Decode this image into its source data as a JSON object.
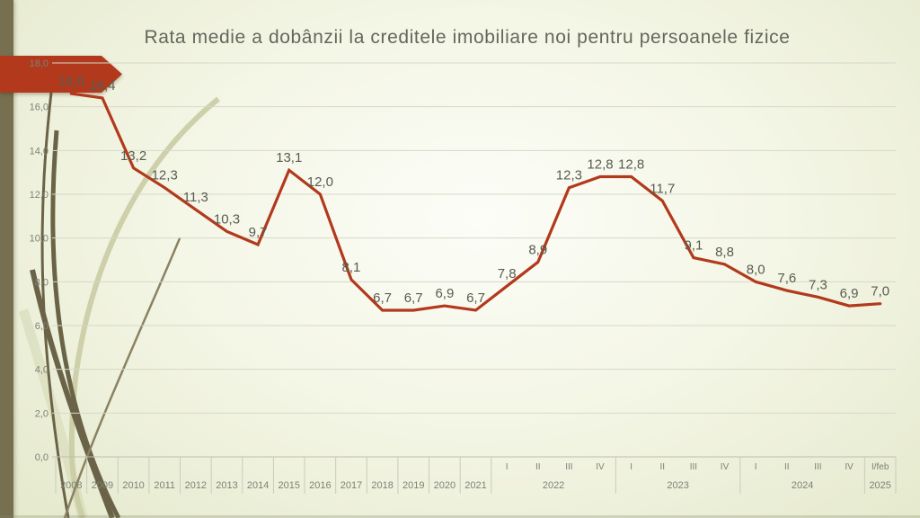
{
  "slide": {
    "title": "Rata medie a dobânzii la creditele imobiliare noi pentru persoanele fizice",
    "decorations": {
      "left_bar_color": "#767050",
      "arrow_color": "#b2391c",
      "swoosh_dark_color": "#6a6347",
      "swoosh_medium_color": "#8a8262",
      "swoosh_pale_color": "#c9cca3",
      "swoosh_palest_color": "#d4d7b2"
    }
  },
  "chart_data": {
    "type": "line",
    "title": "Rata medie a dobânzii la creditele imobiliare noi pentru persoanele fizice",
    "legend_position": "none",
    "grid": true,
    "series": [
      {
        "name": "Rata medie a dobânzii",
        "color": "#b2391c",
        "values": [
          16.6,
          16.4,
          13.2,
          12.3,
          11.3,
          10.3,
          9.7,
          13.1,
          12.0,
          8.1,
          6.7,
          6.7,
          6.9,
          6.7,
          7.8,
          8.9,
          12.3,
          12.8,
          12.8,
          11.7,
          9.1,
          8.8,
          8.0,
          7.6,
          7.3,
          6.9,
          7.0
        ],
        "value_labels": [
          "16,6",
          "16,4",
          "13,2",
          "12,3",
          "11,3",
          "10,3",
          "9,7",
          "13,1",
          "12,0",
          "8,1",
          "6,7",
          "6,7",
          "6,9",
          "6,7",
          "7,8",
          "8,9",
          "12,3",
          "12,8",
          "12,8",
          "11,7",
          "9,1",
          "8,8",
          "8,0",
          "7,6",
          "7,3",
          "6,9",
          "7,0"
        ]
      }
    ],
    "x_axis": {
      "year_categories": [
        "2008",
        "2009",
        "2010",
        "2011",
        "2012",
        "2013",
        "2014",
        "2015",
        "2016",
        "2017",
        "2018",
        "2019",
        "2020",
        "2021"
      ],
      "quarter_groups": [
        {
          "year": "2022",
          "quarters": [
            "I",
            "II",
            "III",
            "IV"
          ]
        },
        {
          "year": "2023",
          "quarters": [
            "I",
            "II",
            "III",
            "IV"
          ]
        },
        {
          "year": "2024",
          "quarters": [
            "I",
            "II",
            "III",
            "IV"
          ]
        },
        {
          "year": "2025",
          "quarters": [
            "I/feb"
          ]
        }
      ]
    },
    "y_axis": {
      "min": 0,
      "max": 18,
      "step": 2,
      "tick_labels": [
        "0,0",
        "2,0",
        "4,0",
        "6,0",
        "8,0",
        "10,0",
        "12,0",
        "14,0",
        "16,0",
        "18,0"
      ]
    }
  }
}
